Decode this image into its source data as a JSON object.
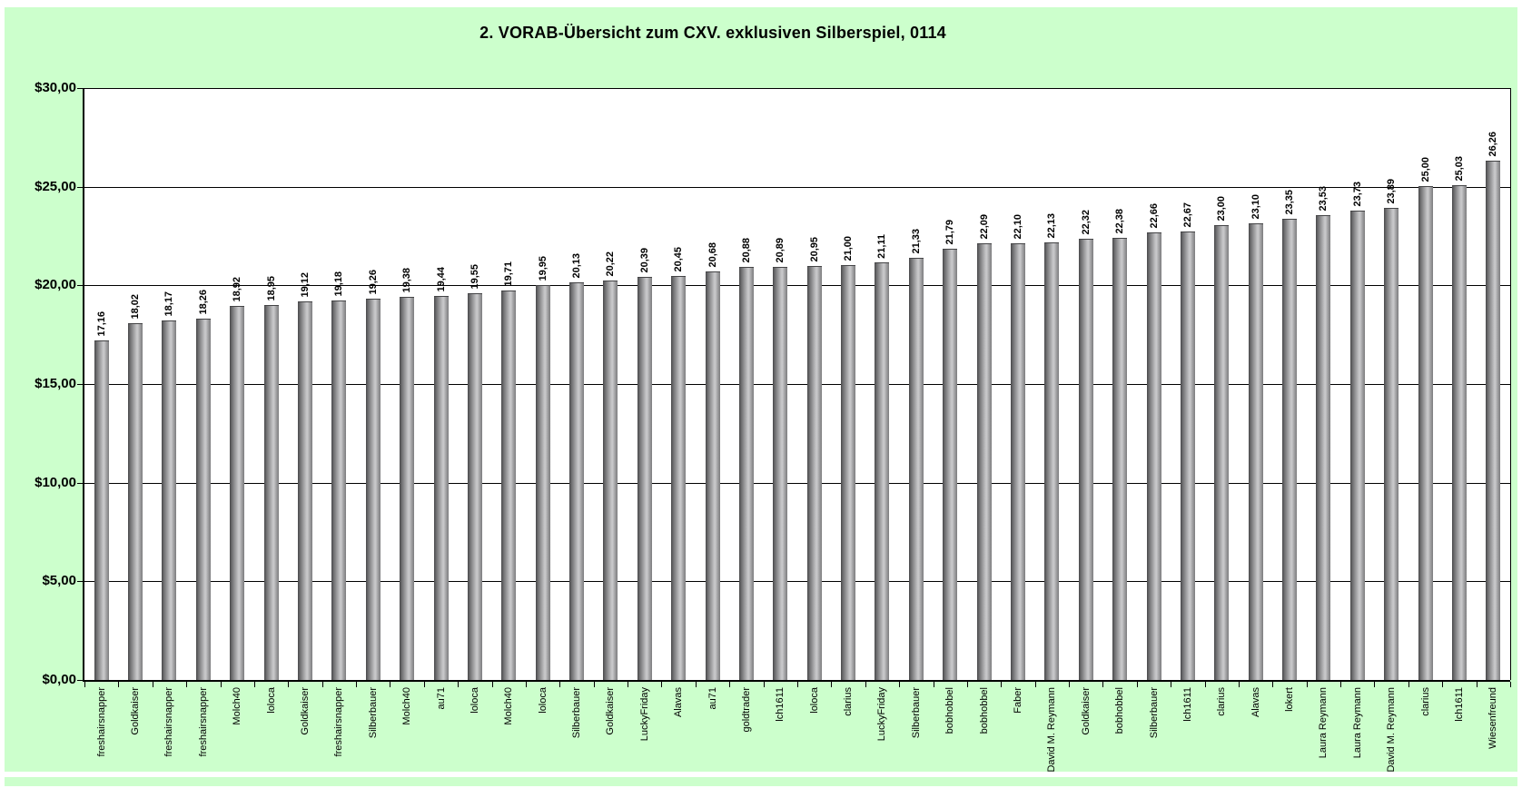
{
  "window": {
    "kind": "spreadsheet-chart-sheet"
  },
  "colors": {
    "page_background": "#ffffff",
    "chart_background": "#ccffcc",
    "plot_background": "#ffffff",
    "axis_color": "#000000",
    "bar_dark": "#48484a",
    "bar_light": "#c9c9cb",
    "bar_edge": "#7c7c7e",
    "text_color": "#000000"
  },
  "chart_data": {
    "type": "bar",
    "title": "2. VORAB-Übersicht zum CXV. exklusiven Silberspiel, 0114",
    "xlabel": "",
    "ylabel": "",
    "ylim": [
      0,
      30
    ],
    "y_tick_step": 5,
    "y_ticks": [
      "$30,00",
      "$25,00",
      "$20,00",
      "$15,00",
      "$10,00",
      "$5,00",
      "$0,00"
    ],
    "grid": true,
    "legend_position": "none",
    "bar_label_rotation": 90,
    "category_label_rotation": 90,
    "categories": [
      "freshairsnapper",
      "Goldkaiser",
      "freshairsnapper",
      "freshairsnapper",
      "Molch40",
      "loloca",
      "Goldkaiser",
      "freshairsnapper",
      "Silberbauer",
      "Molch40",
      "au71",
      "loloca",
      "Molch40",
      "loloca",
      "Silberbauer",
      "Goldkaiser",
      "LuckyFriday",
      "Alavas",
      "au71",
      "goldtrader",
      "lch1611",
      "loloca",
      "clarius",
      "LuckyFriday",
      "Silberbauer",
      "bobhobbel",
      "bobhobbel",
      "Faber",
      "David M. Reymann",
      "Goldkaiser",
      "bobhobbel",
      "Silberbauer",
      "lch1611",
      "clarius",
      "Alavas",
      "lokert",
      "Laura Reymann",
      "Laura Reymann",
      "David M. Reymann",
      "clarius",
      "lch1611",
      "Wiesenfreund"
    ],
    "values": [
      17.16,
      18.02,
      18.17,
      18.26,
      18.92,
      18.95,
      19.12,
      19.18,
      19.26,
      19.38,
      19.44,
      19.55,
      19.71,
      19.95,
      20.13,
      20.22,
      20.39,
      20.45,
      20.68,
      20.88,
      20.89,
      20.95,
      21.0,
      21.11,
      21.33,
      21.79,
      22.09,
      22.1,
      22.13,
      22.32,
      22.38,
      22.66,
      22.67,
      23.0,
      23.1,
      23.35,
      23.53,
      23.73,
      23.89,
      25.0,
      25.03,
      26.26
    ],
    "value_labels": [
      "17,16",
      "18,02",
      "18,17",
      "18,26",
      "18,92",
      "18,95",
      "19,12",
      "19,18",
      "19,26",
      "19,38",
      "19,44",
      "19,55",
      "19,71",
      "19,95",
      "20,13",
      "20,22",
      "20,39",
      "20,45",
      "20,68",
      "20,88",
      "20,89",
      "20,95",
      "21,00",
      "21,11",
      "21,33",
      "21,79",
      "22,09",
      "22,10",
      "22,13",
      "22,32",
      "22,38",
      "22,66",
      "22,67",
      "23,00",
      "23,10",
      "23,35",
      "23,53",
      "23,73",
      "23,89",
      "25,00",
      "25,03",
      "26,26"
    ]
  }
}
